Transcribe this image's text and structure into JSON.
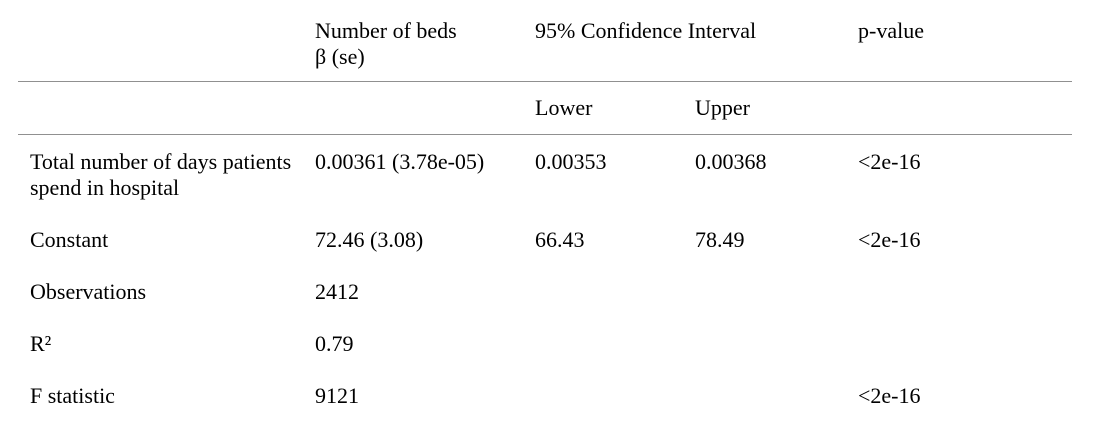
{
  "chart_data": {
    "type": "table",
    "title": "",
    "header": {
      "variable_col": "",
      "beds_beta_line1": "Number of beds",
      "beds_beta_line2": "β (se)",
      "confidence_interval": "95% Confidence Interval",
      "ci_lower": "Lower",
      "ci_upper": "Upper",
      "p_value": "p-value"
    },
    "rows": [
      {
        "label": "Total number of days patients spend in hospital",
        "beta_se": "0.00361 (3.78e-05)",
        "lower": "0.00353",
        "upper": "0.00368",
        "p_value": "<2e-16"
      },
      {
        "label": "Constant",
        "beta_se": "72.46 (3.08)",
        "lower": "66.43",
        "upper": "78.49",
        "p_value": "<2e-16"
      },
      {
        "label": "Observations",
        "beta_se": "2412",
        "lower": "",
        "upper": "",
        "p_value": ""
      },
      {
        "label": "R²",
        "beta_se": "0.79",
        "lower": "",
        "upper": "",
        "p_value": ""
      },
      {
        "label": "F statistic",
        "beta_se": "9121",
        "lower": "",
        "upper": "",
        "p_value": "<2e-16"
      }
    ],
    "layout": {
      "legend": "none",
      "grid": "off",
      "rule_color": "#909090",
      "text_color": "#000000",
      "background": "#ffffff"
    }
  }
}
